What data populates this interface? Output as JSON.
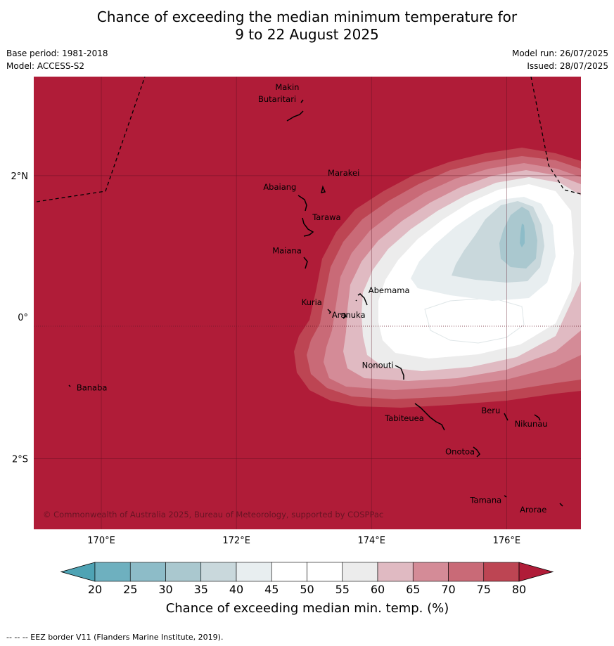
{
  "title_line1": "Chance of exceeding the median minimum temperature for",
  "title_line2": "9 to 22 August 2025",
  "meta": {
    "base_period": "Base period: 1981-2018",
    "model": "Model: ACCESS-S2",
    "model_run": "Model run: 26/07/2025",
    "issued": "Issued: 28/07/2025"
  },
  "map": {
    "lon_range": [
      169.0,
      177.1
    ],
    "lat_range": [
      -3.0,
      3.4
    ],
    "background_color": "#b01c38",
    "lon_ticks": [
      {
        "value": 170,
        "label": "170°E"
      },
      {
        "value": 172,
        "label": "172°E"
      },
      {
        "value": 174,
        "label": "174°E"
      },
      {
        "value": 176,
        "label": "176°E"
      }
    ],
    "lat_ticks": [
      {
        "value": 2,
        "label": "2°N"
      },
      {
        "value": 0,
        "label": "0°"
      },
      {
        "value": -2,
        "label": "2°S"
      }
    ],
    "islands": [
      {
        "name": "Makin",
        "lon": 172.97,
        "lat": 3.25
      },
      {
        "name": "Butaritari",
        "lon": 172.8,
        "lat": 3.08
      },
      {
        "name": "Marakei",
        "lon": 173.29,
        "lat": 2.0
      },
      {
        "name": "Abaiang",
        "lon": 172.97,
        "lat": 1.85
      },
      {
        "name": "Tarawa",
        "lon": 173.0,
        "lat": 1.42
      },
      {
        "name": "Maiana",
        "lon": 173.0,
        "lat": 0.93
      },
      {
        "name": "Abemama",
        "lon": 173.87,
        "lat": 0.38
      },
      {
        "name": "Kuria",
        "lon": 173.4,
        "lat": 0.22
      },
      {
        "name": "Aranuka",
        "lon": 173.6,
        "lat": 0.17
      },
      {
        "name": "Nonouti",
        "lon": 174.4,
        "lat": -0.65
      },
      {
        "name": "Banaba",
        "lon": 169.55,
        "lat": -0.88
      },
      {
        "name": "Tabiteuea",
        "lon": 174.8,
        "lat": -1.35
      },
      {
        "name": "Beru",
        "lon": 176.0,
        "lat": -1.33
      },
      {
        "name": "Nikunau",
        "lon": 176.45,
        "lat": -1.35
      },
      {
        "name": "Onotoa",
        "lon": 175.55,
        "lat": -1.8
      },
      {
        "name": "Tamana",
        "lon": 175.98,
        "lat": -2.5
      },
      {
        "name": "Arorae",
        "lon": 176.82,
        "lat": -2.64
      }
    ],
    "copyright": "© Commonwealth of Australia 2025, Bureau of Meteorology, supported by COSPPac"
  },
  "colorbar": {
    "levels": [
      20,
      25,
      30,
      35,
      40,
      45,
      50,
      55,
      60,
      65,
      70,
      75,
      80
    ],
    "colors": [
      "#4ea3b4",
      "#6eb0bf",
      "#8dbcc8",
      "#aac8cf",
      "#c9d8dc",
      "#e8eef0",
      "#ffffff",
      "#ffffff",
      "#ececec",
      "#e0bac2",
      "#d48b97",
      "#c96a77",
      "#bd4553",
      "#b01c38"
    ],
    "label": "Chance of exceeding median min. temp. (%)"
  },
  "footer": "--  --  -- EEZ border V11 (Flanders Marine Institute, 2019)."
}
